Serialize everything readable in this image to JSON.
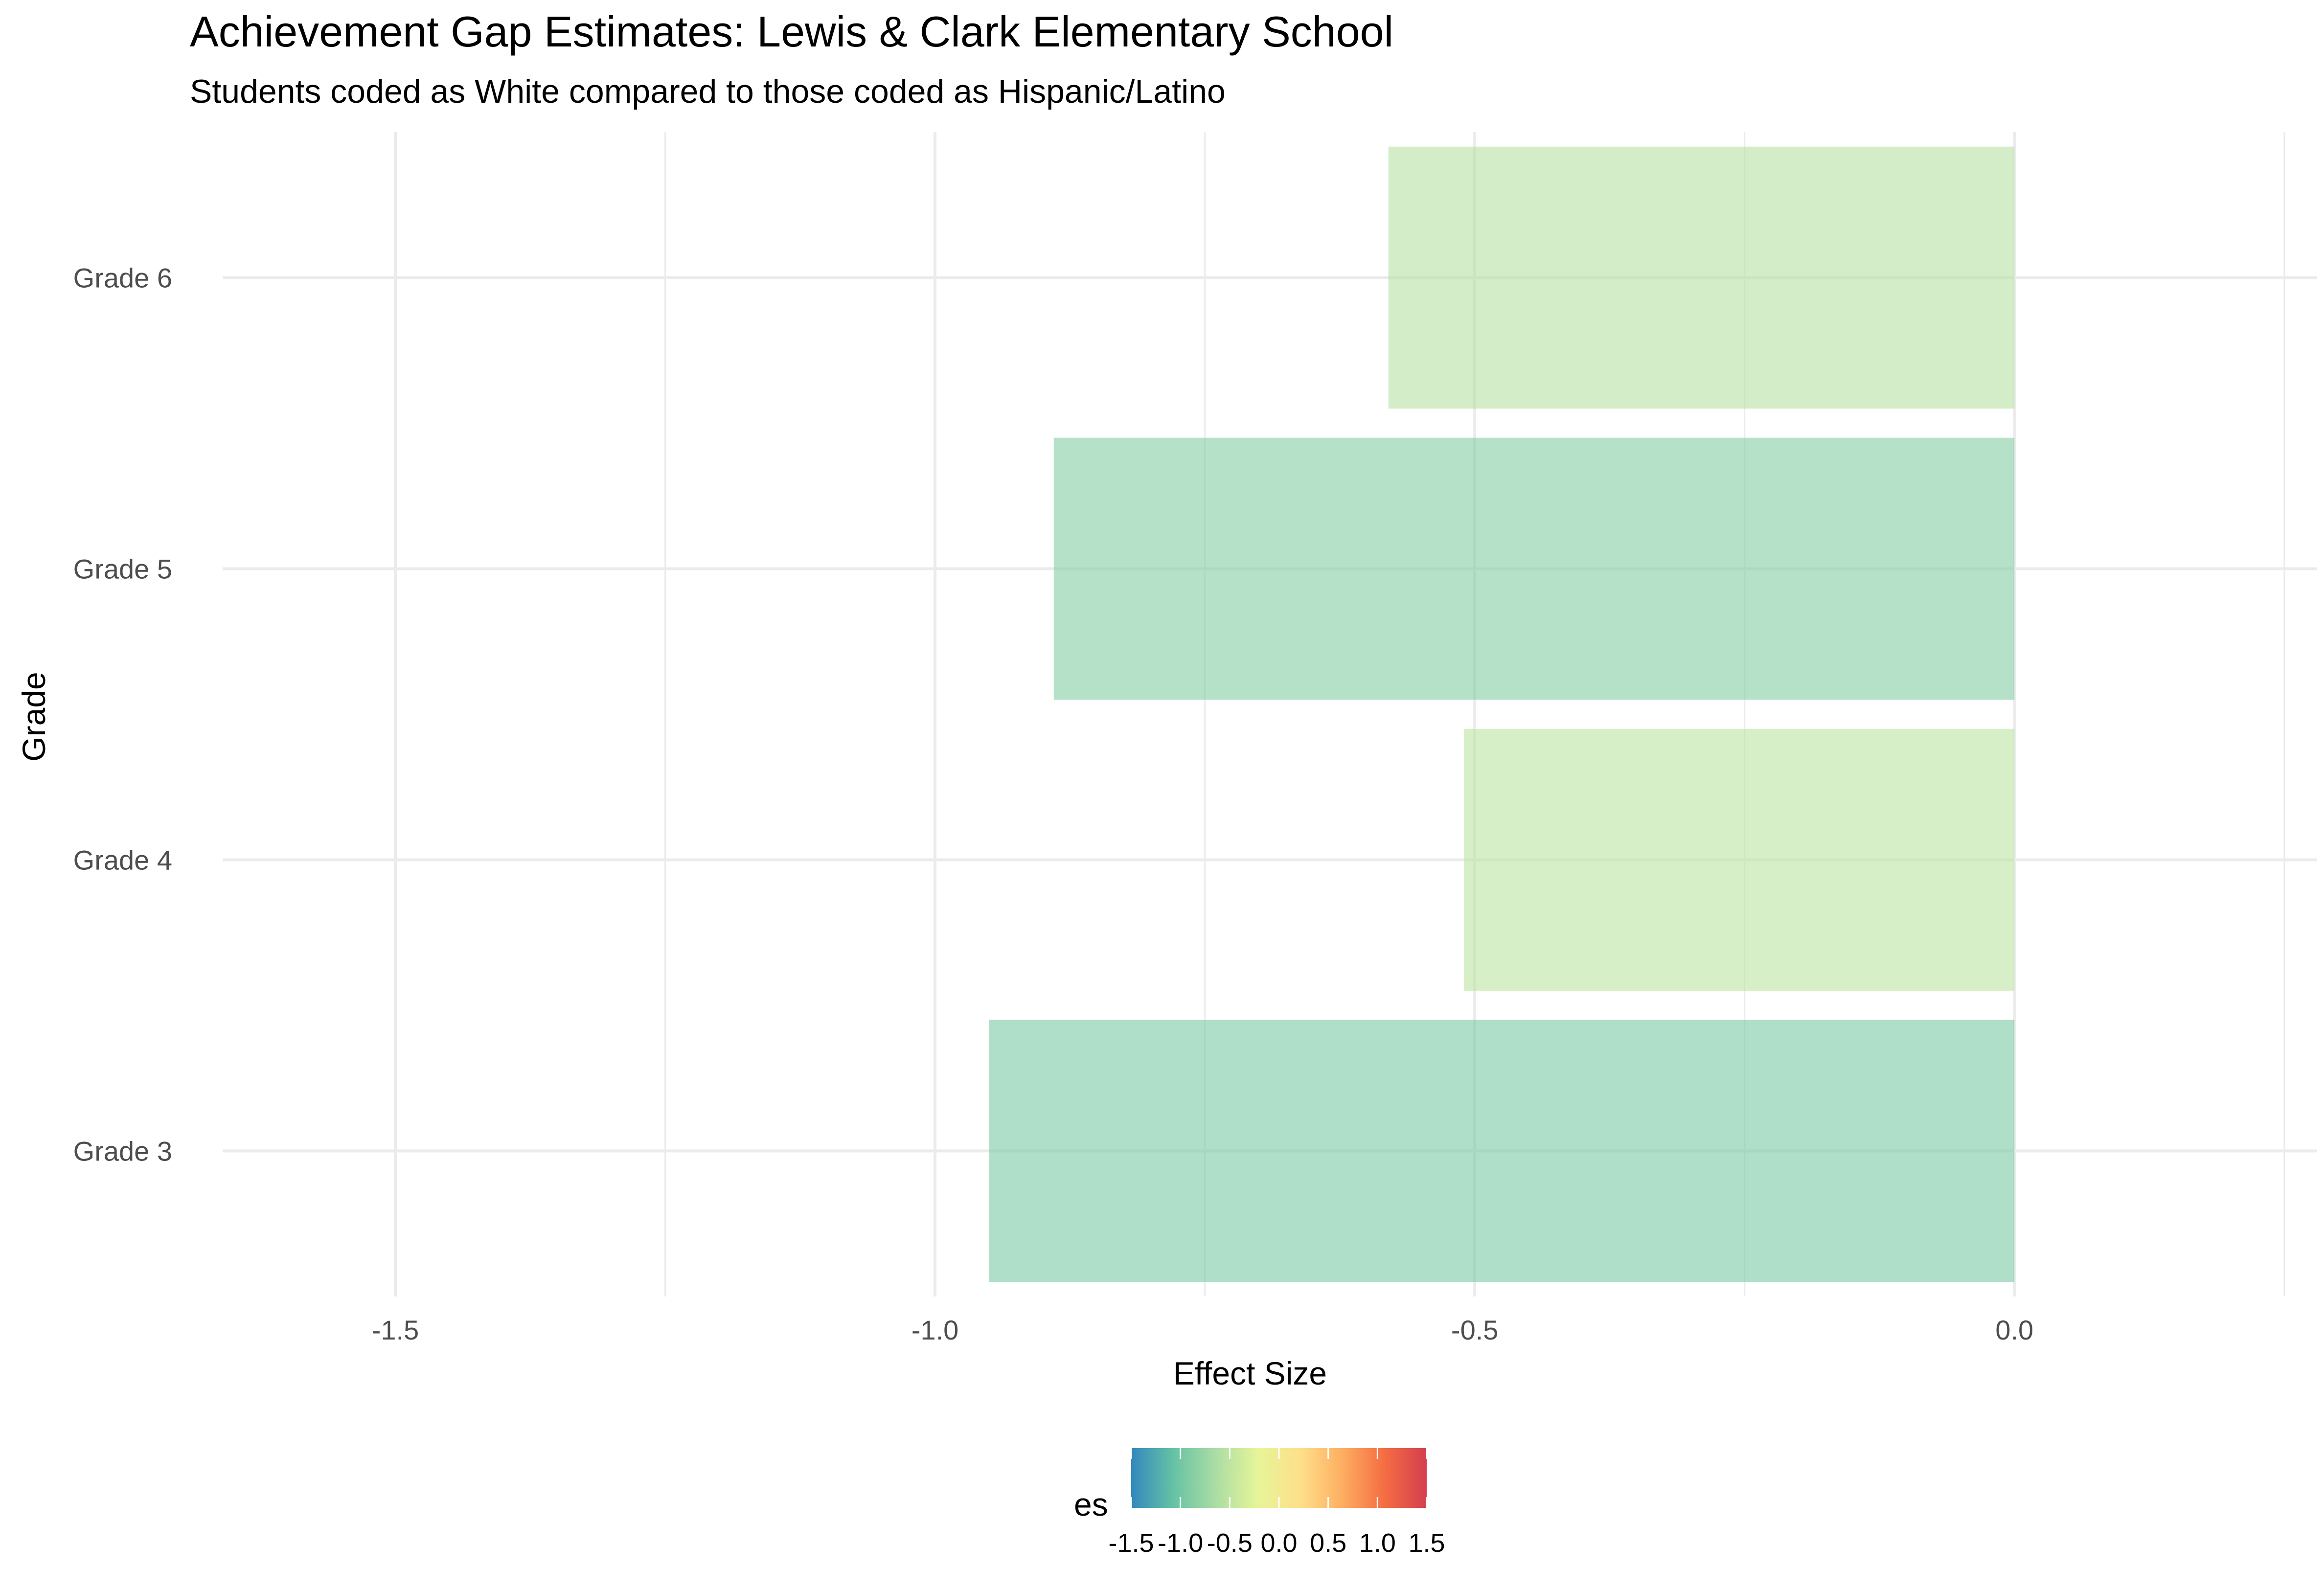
{
  "chart_data": {
    "type": "bar",
    "orientation": "horizontal",
    "title": "Achievement Gap Estimates: Lewis & Clark Elementary School",
    "subtitle": "Students coded as White compared to those coded as Hispanic/Latino",
    "xlabel": "Effect Size",
    "ylabel": "Grade",
    "categories": [
      "Grade 3",
      "Grade 4",
      "Grade 5",
      "Grade 6"
    ],
    "values": [
      -0.95,
      -0.51,
      -0.89,
      -0.58
    ],
    "xlim": [
      -1.66,
      0.28
    ],
    "x_ticks": [
      -1.5,
      -1.0,
      -0.5,
      0.0
    ],
    "x_tick_labels": [
      "-1.5",
      "-1.0",
      "-0.5",
      "0.0"
    ],
    "grid": true,
    "fill_scale": {
      "title": "es",
      "palette": "Spectral",
      "limits": [
        -1.5,
        1.5
      ],
      "breaks": [
        -1.5,
        -1.0,
        -0.5,
        0.0,
        0.5,
        1.0,
        1.5
      ],
      "break_labels": [
        "-1.5",
        "-1.0",
        "-0.5",
        "0.0",
        "0.5",
        "1.0",
        "1.5"
      ],
      "colors": [
        "#3288bd",
        "#66c2a5",
        "#abdda4",
        "#e6f598",
        "#fee08b",
        "#fdae61",
        "#f46d43",
        "#d53e4f"
      ]
    },
    "bar_opacity": 0.6,
    "legend_position": "bottom"
  }
}
